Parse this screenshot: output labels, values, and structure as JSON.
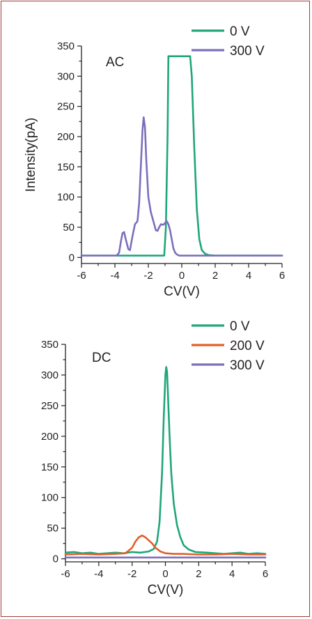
{
  "colors": {
    "frame": "#a23a3a",
    "axis": "#231f20",
    "series_0V": "#1fa67a",
    "series_200V": "#e0602a",
    "series_300V": "#7b6fbd"
  },
  "chart_data": [
    {
      "type": "line",
      "panel_label": "AC",
      "title": "",
      "xlabel": "CV(V)",
      "ylabel": "Intensity(pA)",
      "xlim": [
        -6,
        6
      ],
      "ylim": [
        -10,
        350
      ],
      "x_ticks": [
        -6,
        -4,
        -2,
        0,
        2,
        4,
        6
      ],
      "y_ticks": [
        0,
        50,
        100,
        150,
        200,
        250,
        300,
        350
      ],
      "legend_position": "top-right",
      "series": [
        {
          "name": "0 V",
          "color": "#1fa67a",
          "x": [
            -6,
            -1.05,
            -0.95,
            -0.85,
            -0.8,
            0.3,
            0.5,
            0.6,
            0.75,
            0.9,
            1.05,
            1.2,
            1.4,
            1.6,
            2.0,
            6
          ],
          "y": [
            3,
            3,
            50,
            200,
            333,
            333,
            333,
            300,
            180,
            80,
            30,
            12,
            6,
            4,
            3,
            3
          ]
        },
        {
          "name": "300 V",
          "color": "#7b6fbd",
          "x": [
            -6,
            -3.9,
            -3.75,
            -3.65,
            -3.55,
            -3.45,
            -3.35,
            -3.2,
            -3.1,
            -2.95,
            -2.8,
            -2.65,
            -2.55,
            -2.45,
            -2.35,
            -2.28,
            -2.2,
            -2.12,
            -2.0,
            -1.85,
            -1.7,
            -1.55,
            -1.45,
            -1.35,
            -1.25,
            -1.1,
            -1.0,
            -0.9,
            -0.8,
            -0.7,
            -0.6,
            -0.5,
            -0.4,
            -0.3,
            -0.15,
            0.0,
            0.3,
            6
          ],
          "y": [
            3,
            3,
            8,
            25,
            40,
            42,
            30,
            14,
            12,
            35,
            55,
            60,
            90,
            150,
            210,
            232,
            215,
            160,
            100,
            75,
            60,
            45,
            44,
            50,
            55,
            54,
            57,
            60,
            55,
            45,
            30,
            15,
            8,
            5,
            3,
            3,
            3,
            3
          ]
        }
      ]
    },
    {
      "type": "line",
      "panel_label": "DC",
      "title": "",
      "xlabel": "CV(V)",
      "ylabel": "",
      "xlim": [
        -6,
        6
      ],
      "ylim": [
        -5,
        350
      ],
      "x_ticks": [
        -6,
        -4,
        -2,
        0,
        2,
        4,
        6
      ],
      "y_ticks": [
        0,
        50,
        100,
        150,
        200,
        250,
        300,
        350
      ],
      "legend_position": "top-right",
      "series": [
        {
          "name": "0 V",
          "color": "#1fa67a",
          "x": [
            -6,
            -5.5,
            -5.0,
            -4.5,
            -4.0,
            -3.5,
            -3.0,
            -2.5,
            -2.0,
            -1.5,
            -1.0,
            -0.7,
            -0.5,
            -0.35,
            -0.2,
            -0.1,
            0.0,
            0.05,
            0.1,
            0.15,
            0.25,
            0.35,
            0.5,
            0.7,
            0.9,
            1.1,
            1.4,
            1.8,
            2.5,
            3.0,
            3.5,
            4.0,
            4.5,
            5.0,
            5.5,
            6.0
          ],
          "y": [
            10,
            11,
            9,
            10,
            8,
            9,
            10,
            9,
            11,
            10,
            12,
            16,
            28,
            60,
            140,
            230,
            300,
            313,
            305,
            270,
            200,
            140,
            90,
            55,
            35,
            22,
            15,
            11,
            10,
            9,
            8,
            9,
            10,
            8,
            9,
            8
          ]
        },
        {
          "name": "200 V",
          "color": "#e0602a",
          "x": [
            -6,
            -5.0,
            -4.0,
            -3.0,
            -2.4,
            -2.0,
            -1.8,
            -1.6,
            -1.4,
            -1.2,
            -1.0,
            -0.8,
            -0.6,
            -0.3,
            0.0,
            0.5,
            1.0,
            2.0,
            3.0,
            4.0,
            5.0,
            6.0
          ],
          "y": [
            7,
            8,
            7,
            8,
            9,
            18,
            28,
            35,
            38,
            35,
            30,
            25,
            18,
            12,
            9,
            8,
            8,
            7,
            7,
            8,
            7,
            7
          ]
        },
        {
          "name": "300 V",
          "color": "#7b6fbd",
          "x": [
            -6,
            6
          ],
          "y": [
            2,
            2
          ]
        }
      ]
    }
  ]
}
